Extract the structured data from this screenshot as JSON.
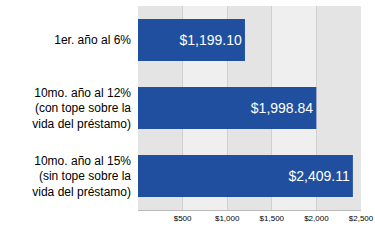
{
  "chart_data": {
    "type": "bar",
    "orientation": "horizontal",
    "categories": [
      "1er. año al 6%",
      "10mo. año al 12%\n(con tope sobre la\nvida del préstamo)",
      "10mo. año al 15%\n(sin tope sobre la\nvida del préstamo)"
    ],
    "values": [
      1199.1,
      1998.84,
      2409.11
    ],
    "value_labels": [
      "$1,199.10",
      "$1,998.84",
      "$2,409.11"
    ],
    "data_labels": true,
    "color": "#1f4f9e",
    "xlim": [
      0,
      2500
    ],
    "xticks": [
      {
        "value": 500,
        "label": "$500"
      },
      {
        "value": 1000,
        "label": "$1,000"
      },
      {
        "value": 1500,
        "label": "$1,500"
      },
      {
        "value": 2000,
        "label": "$2,000"
      },
      {
        "value": 2500,
        "label": "$2,500"
      }
    ],
    "grid": true
  }
}
